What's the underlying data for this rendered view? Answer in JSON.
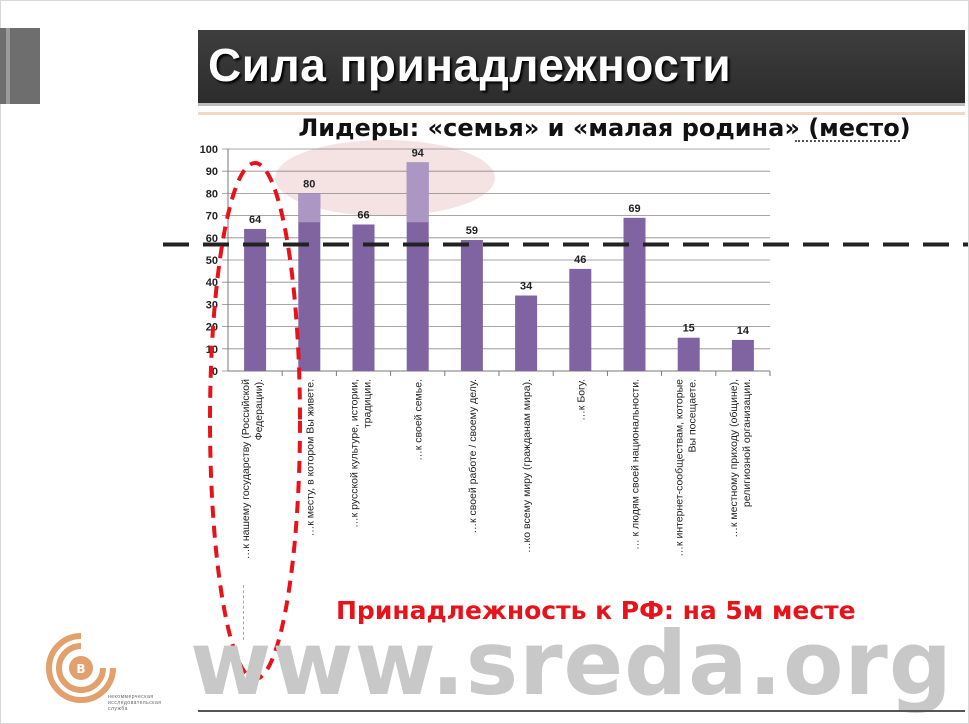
{
  "slide": {
    "title": "Сила принадлежности",
    "subtitle": "Лидеры: «семья» и «малая родина» (место)",
    "callout": "Принадлежность к РФ: на 5м месте",
    "watermark": "www.sreda.org",
    "logo_caption": "некоммерческая исследовательская служба"
  },
  "colors": {
    "bar": "#8064a2",
    "bar_light": "#b09cc8",
    "highlight_oval": "#e8121b",
    "dashed_line": "#222222",
    "title_bg": "#333333",
    "logo": "#e2a06c"
  },
  "chart_data": {
    "type": "bar",
    "title": "",
    "xlabel": "",
    "ylabel": "",
    "ylim": [
      0,
      100
    ],
    "yticks": [
      0,
      10,
      20,
      30,
      40,
      50,
      60,
      70,
      80,
      90,
      100
    ],
    "grid": true,
    "reference_line": 57,
    "categories": [
      "…к нашему государству (Российской Федерации).",
      "…к месту, в котором Вы живете.",
      "…к русской культуре, истории, традиции.",
      "…к своей семье.",
      "…к своей работе / своему делу.",
      "…ко всему миру (гражданам мира).",
      "…к Богу.",
      "… к людям своей национальности.",
      "…к интернет-сообществам, которые Вы посещаете.",
      "…к местному приходу (общине), религиозной организации."
    ],
    "values": [
      64,
      80,
      66,
      94,
      59,
      34,
      46,
      69,
      15,
      14
    ]
  }
}
